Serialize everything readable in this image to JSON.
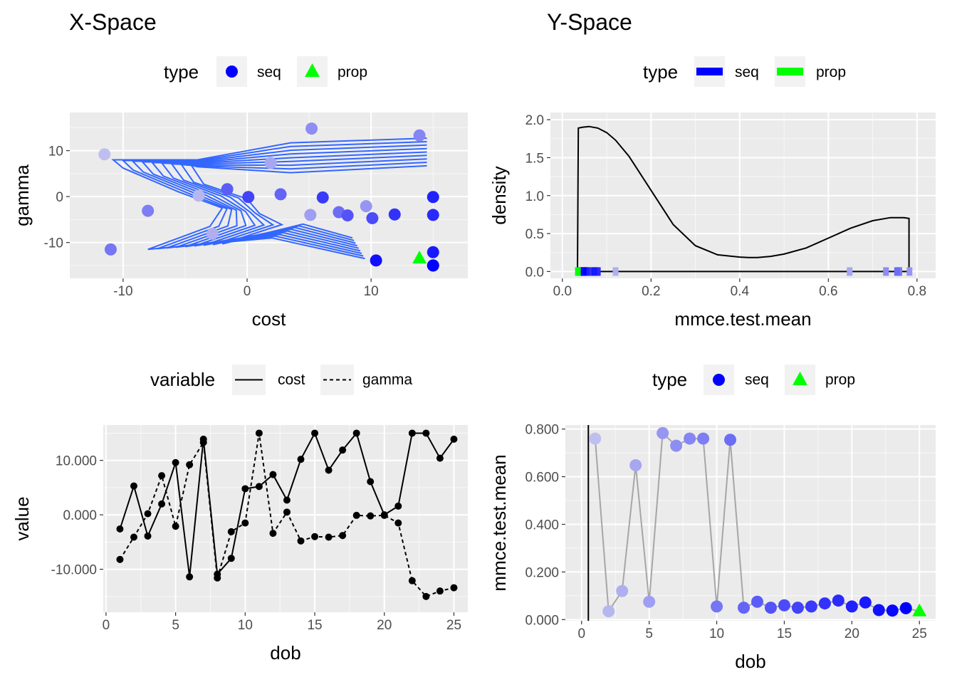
{
  "titles": {
    "left": "X-Space",
    "right": "Y-Space"
  },
  "legends": {
    "p1": {
      "title": "type",
      "items": [
        {
          "label": "seq",
          "color": "#0000ff",
          "shape": "circle"
        },
        {
          "label": "prop",
          "color": "#00ff00",
          "shape": "triangle"
        }
      ]
    },
    "p2": {
      "title": "type",
      "items": [
        {
          "label": "seq",
          "color": "#0000ff",
          "shape": "bar"
        },
        {
          "label": "prop",
          "color": "#00ff00",
          "shape": "bar"
        }
      ]
    },
    "p3": {
      "title": "variable",
      "items": [
        {
          "label": "cost",
          "dash": "solid"
        },
        {
          "label": "gamma",
          "dash": "dashed"
        }
      ]
    },
    "p4": {
      "title": "type",
      "items": [
        {
          "label": "seq",
          "color": "#0000ff",
          "shape": "circle"
        },
        {
          "label": "prop",
          "color": "#00ff00",
          "shape": "triangle"
        }
      ]
    }
  },
  "chart_data": [
    {
      "type": "scatter",
      "xlabel": "cost",
      "ylabel": "gamma",
      "xlim": [
        -14.3,
        17.8
      ],
      "ylim": [
        -17.8,
        18.3
      ],
      "xticks": [
        -10,
        0,
        10
      ],
      "yticks": [
        -10,
        0,
        10
      ],
      "xtick_labels": [
        "-10",
        "0",
        "10"
      ],
      "ytick_labels": [
        "-10",
        "0",
        "10"
      ],
      "grid": true,
      "contour_color": "#3366ff",
      "points": [
        {
          "dob": 1,
          "cost": -11.5,
          "gamma": 9.2,
          "type": "seq"
        },
        {
          "dob": 2,
          "cost": -3.9,
          "gamma": 0.2,
          "type": "seq"
        },
        {
          "dob": 3,
          "cost": -2.8,
          "gamma": -8.1,
          "type": "seq"
        },
        {
          "dob": 4,
          "cost": 1.9,
          "gamma": 7.3,
          "type": "seq"
        },
        {
          "dob": 5,
          "cost": 5.1,
          "gamma": -4.0,
          "type": "seq"
        },
        {
          "dob": 6,
          "cost": 9.6,
          "gamma": -2.1,
          "type": "seq"
        },
        {
          "dob": 7,
          "cost": 5.2,
          "gamma": 14.8,
          "type": "seq"
        },
        {
          "dob": 8,
          "cost": 13.9,
          "gamma": 13.3,
          "type": "seq"
        },
        {
          "dob": 9,
          "cost": -8.0,
          "gamma": -3.1,
          "type": "seq"
        },
        {
          "dob": 10,
          "cost": -11.0,
          "gamma": -11.5,
          "type": "seq"
        },
        {
          "dob": 11,
          "cost": 7.4,
          "gamma": -3.4,
          "type": "seq"
        },
        {
          "dob": 12,
          "cost": 2.7,
          "gamma": 0.5,
          "type": "seq"
        },
        {
          "dob": 13,
          "cost": -1.6,
          "gamma": 1.6,
          "type": "seq"
        },
        {
          "dob": 14,
          "cost": 8.1,
          "gamma": -4.1,
          "type": "seq"
        },
        {
          "dob": 15,
          "cost": 10.1,
          "gamma": -4.7,
          "type": "seq"
        },
        {
          "dob": 16,
          "cost": 0.1,
          "gamma": -0.1,
          "type": "seq"
        },
        {
          "dob": 17,
          "cost": 6.1,
          "gamma": -0.2,
          "type": "seq"
        },
        {
          "dob": 18,
          "cost": 11.9,
          "gamma": -3.9,
          "type": "seq"
        },
        {
          "dob": 19,
          "cost": 15.0,
          "gamma": -4.0,
          "type": "seq"
        },
        {
          "dob": 20,
          "cost": 15.0,
          "gamma": -0.1,
          "type": "seq"
        },
        {
          "dob": 21,
          "cost": 15.0,
          "gamma": -12.1,
          "type": "seq"
        },
        {
          "dob": 22,
          "cost": 10.4,
          "gamma": -13.9,
          "type": "seq"
        },
        {
          "dob": 23,
          "cost": 15.0,
          "gamma": -15.0,
          "type": "seq"
        },
        {
          "dob": 24,
          "cost": 15.0,
          "gamma": -15.0,
          "type": "seq"
        },
        {
          "dob": 25,
          "cost": 13.9,
          "gamma": -13.3,
          "type": "prop"
        }
      ]
    },
    {
      "type": "area",
      "xlabel": "mmce.test.mean",
      "ylabel": "density",
      "xlim": [
        -0.027,
        0.842
      ],
      "ylim": [
        -0.09,
        2.095
      ],
      "xticks": [
        0.0,
        0.2,
        0.4,
        0.6,
        0.8
      ],
      "yticks": [
        0.0,
        0.5,
        1.0,
        1.5,
        2.0
      ],
      "xtick_labels": [
        "0.0",
        "0.2",
        "0.4",
        "0.6",
        "0.8"
      ],
      "ytick_labels": [
        "0.0",
        "0.5",
        "1.0",
        "1.5",
        "2.0"
      ],
      "grid": true,
      "density": {
        "x": [
          0.034,
          0.036,
          0.045,
          0.06,
          0.08,
          0.1,
          0.12,
          0.15,
          0.2,
          0.25,
          0.3,
          0.35,
          0.4,
          0.42,
          0.44,
          0.47,
          0.5,
          0.55,
          0.6,
          0.65,
          0.7,
          0.74,
          0.77,
          0.782
        ],
        "y": [
          0.0,
          1.89,
          1.9,
          1.91,
          1.89,
          1.83,
          1.73,
          1.52,
          1.07,
          0.62,
          0.34,
          0.22,
          0.19,
          0.185,
          0.185,
          0.2,
          0.23,
          0.31,
          0.44,
          0.57,
          0.67,
          0.71,
          0.71,
          0.7
        ]
      }
    },
    {
      "type": "line",
      "xlabel": "dob",
      "ylabel": "value",
      "xlim": [
        -0.2,
        26.0
      ],
      "ylim": [
        -17.9,
        16.5
      ],
      "xticks": [
        0,
        5,
        10,
        15,
        20,
        25
      ],
      "yticks": [
        -10,
        0,
        10
      ],
      "xtick_labels": [
        "0",
        "5",
        "10",
        "15",
        "20",
        "25"
      ],
      "ytick_labels": [
        "-10.000",
        "0.000",
        "10.000"
      ],
      "grid": true,
      "x": [
        1,
        2,
        3,
        4,
        5,
        6,
        7,
        8,
        9,
        10,
        11,
        12,
        13,
        14,
        15,
        16,
        17,
        18,
        19,
        20,
        21,
        22,
        23,
        24,
        25
      ],
      "series": [
        {
          "name": "cost",
          "dash": "solid",
          "values": [
            -2.6,
            5.3,
            -3.9,
            2.0,
            9.6,
            -11.4,
            13.9,
            -10.9,
            -8.0,
            4.8,
            5.2,
            7.4,
            2.7,
            10.2,
            15.0,
            8.2,
            11.9,
            15.0,
            6.1,
            0.0,
            1.6,
            15.0,
            15.0,
            10.4,
            13.9
          ]
        },
        {
          "name": "gamma",
          "dash": "dashed",
          "values": [
            -8.2,
            -4.1,
            0.2,
            7.2,
            -2.1,
            9.2,
            13.3,
            -11.6,
            -3.1,
            -1.5,
            15.0,
            -3.4,
            0.5,
            -4.8,
            -4.0,
            -4.1,
            -3.8,
            -0.1,
            -0.2,
            -0.1,
            -1.5,
            -12.1,
            -15.0,
            -14.0,
            -13.4
          ]
        }
      ]
    },
    {
      "type": "scatter",
      "xlabel": "dob",
      "ylabel": "mmce.test.mean",
      "xlim": [
        -1.2,
        26.2
      ],
      "ylim": [
        -0.005,
        0.817
      ],
      "xticks": [
        0,
        5,
        10,
        15,
        20,
        25
      ],
      "yticks": [
        0.0,
        0.2,
        0.4,
        0.6,
        0.8
      ],
      "xtick_labels": [
        "0",
        "5",
        "10",
        "15",
        "20",
        "25"
      ],
      "ytick_labels": [
        "0.000",
        "0.200",
        "0.400",
        "0.600",
        "0.800"
      ],
      "grid": true,
      "vline_x": 0.5,
      "x": [
        1,
        2,
        3,
        4,
        5,
        6,
        7,
        8,
        9,
        10,
        11,
        12,
        13,
        14,
        15,
        16,
        17,
        18,
        19,
        20,
        21,
        22,
        23,
        24,
        25
      ],
      "values": [
        0.76,
        0.035,
        0.12,
        0.648,
        0.075,
        0.783,
        0.73,
        0.76,
        0.76,
        0.055,
        0.755,
        0.05,
        0.075,
        0.05,
        0.06,
        0.05,
        0.055,
        0.068,
        0.08,
        0.055,
        0.072,
        0.04,
        0.038,
        0.048,
        0.035
      ],
      "types": [
        "seq",
        "seq",
        "seq",
        "seq",
        "seq",
        "seq",
        "seq",
        "seq",
        "seq",
        "seq",
        "seq",
        "seq",
        "seq",
        "seq",
        "seq",
        "seq",
        "seq",
        "seq",
        "seq",
        "seq",
        "seq",
        "seq",
        "seq",
        "seq",
        "prop"
      ]
    }
  ]
}
